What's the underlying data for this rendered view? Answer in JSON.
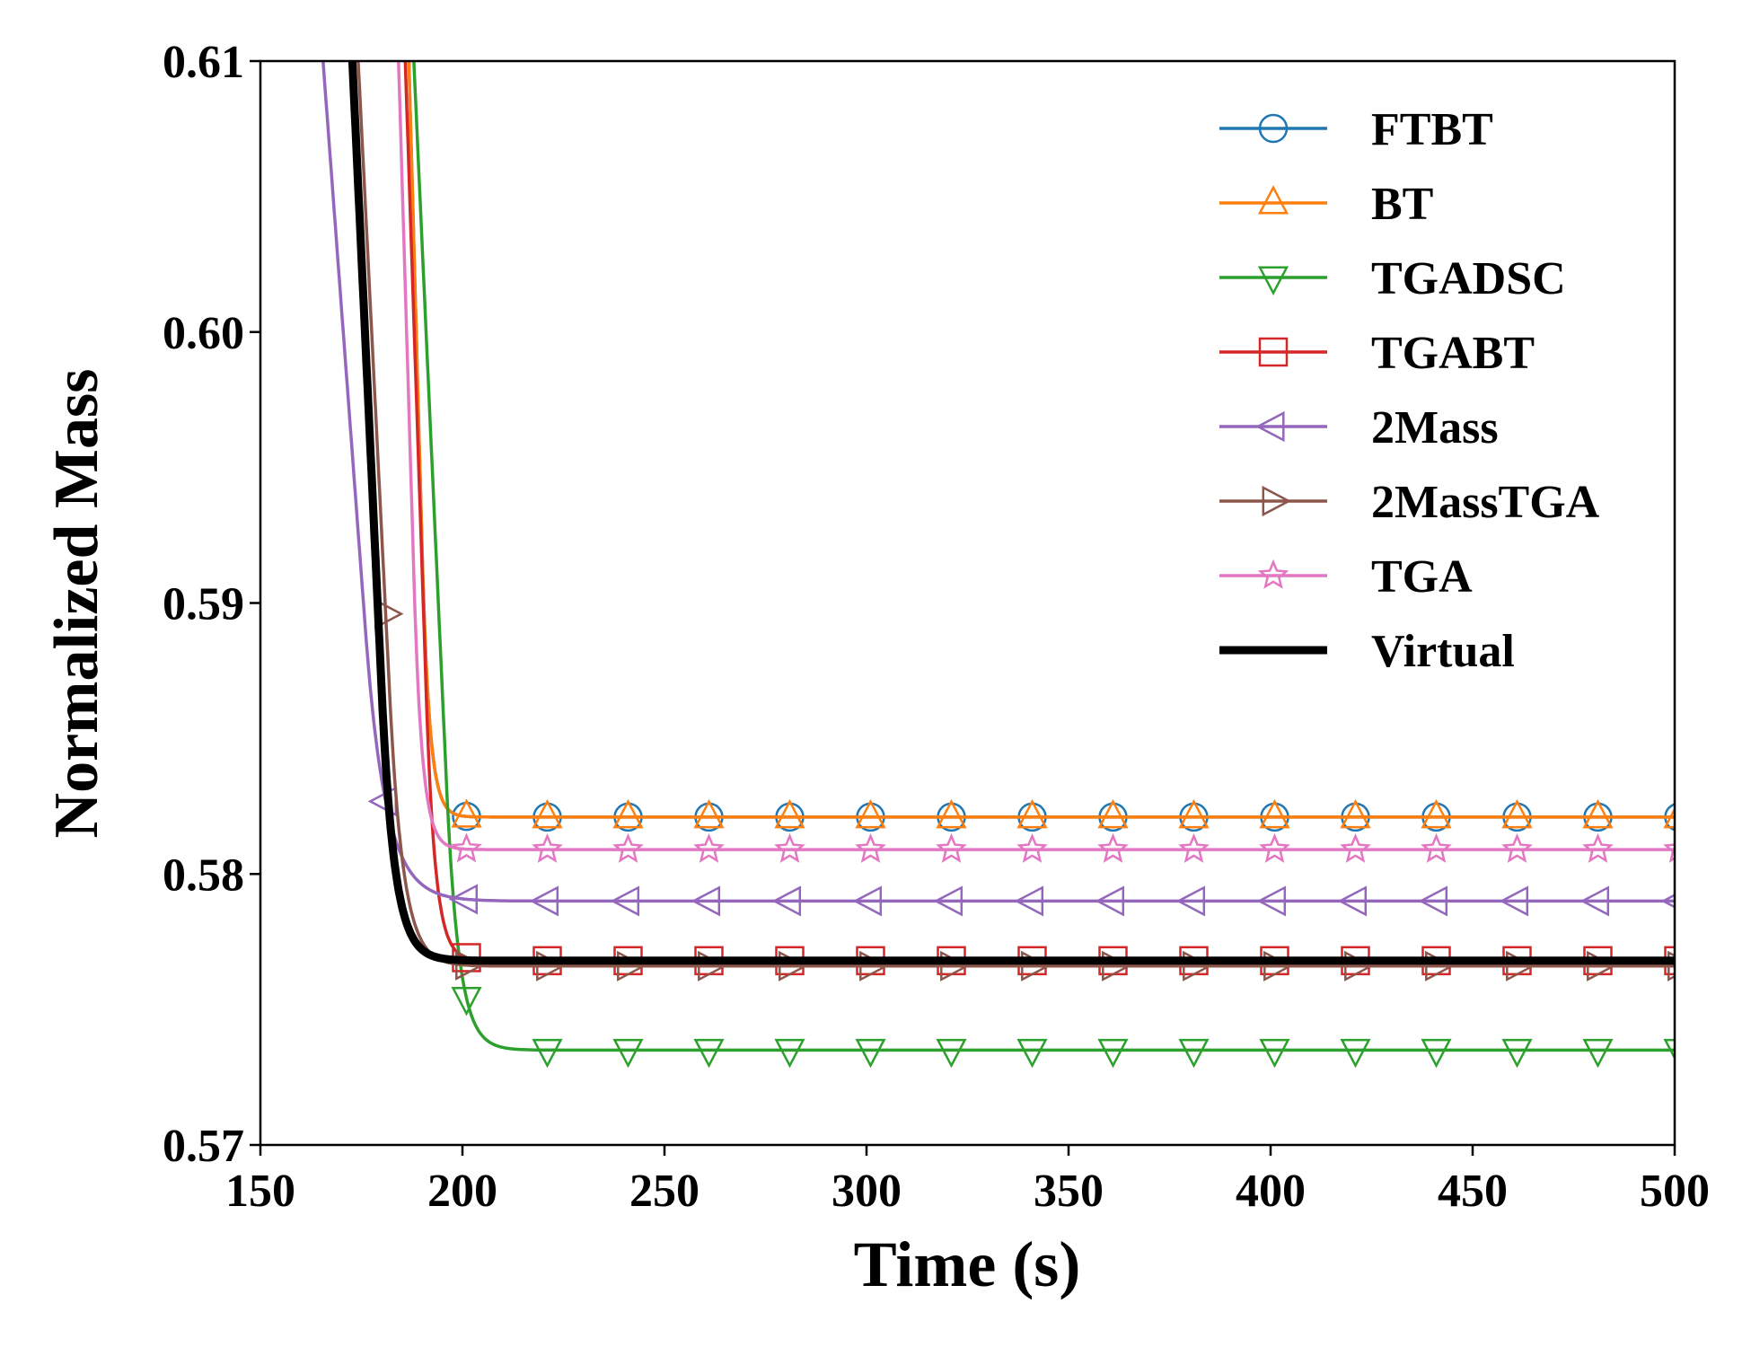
{
  "chart_data": {
    "type": "line",
    "title": "",
    "xlabel": "Time (s)",
    "ylabel": "Normalized Mass",
    "xlim": [
      150,
      500
    ],
    "ylim": [
      0.57,
      0.61
    ],
    "x_ticks": [
      150,
      200,
      250,
      300,
      350,
      400,
      450,
      500
    ],
    "x_tick_labels": [
      "150",
      "200",
      "250",
      "300",
      "350",
      "400",
      "450",
      "500"
    ],
    "y_ticks": [
      0.57,
      0.58,
      0.59,
      0.6,
      0.61
    ],
    "y_tick_labels": [
      "0.57",
      "0.58",
      "0.59",
      "0.60",
      "0.61"
    ],
    "grid": false,
    "legend_position": "top-right",
    "marker_x": [
      181,
      201,
      221,
      241,
      261,
      281,
      301,
      321,
      341,
      361,
      381,
      401,
      421,
      441,
      461,
      481,
      501
    ],
    "series": [
      {
        "name": "FTBT",
        "color": "#1f77b4",
        "marker": "circle",
        "x_drop": 190,
        "plateau": 0.5821,
        "rate": 0.55
      },
      {
        "name": "BT",
        "color": "#ff7f0e",
        "marker": "triangle-up",
        "x_drop": 190,
        "plateau": 0.5821,
        "rate": 0.55
      },
      {
        "name": "TGADSC",
        "color": "#2ca02c",
        "marker": "triangle-down",
        "x_drop": 196,
        "plateau": 0.5735,
        "rate": 0.33
      },
      {
        "name": "TGABT",
        "color": "#d62728",
        "marker": "square",
        "x_drop": 191,
        "plateau": 0.5768,
        "rate": 0.45
      },
      {
        "name": "2Mass",
        "color": "#9467bd",
        "marker": "triangle-left",
        "x_drop": 176,
        "plateau": 0.579,
        "rate": 0.2
      },
      {
        "name": "2MassTGA",
        "color": "#8c564b",
        "marker": "triangle-right",
        "x_drop": 182,
        "plateau": 0.5766,
        "rate": 0.3
      },
      {
        "name": "TGA",
        "color": "#e377c2",
        "marker": "star",
        "x_drop": 188,
        "plateau": 0.5809,
        "rate": 0.5
      },
      {
        "name": "Virtual",
        "color": "#000000",
        "marker": "none",
        "x_drop": 180,
        "plateau": 0.5768,
        "rate": 0.32
      }
    ]
  }
}
